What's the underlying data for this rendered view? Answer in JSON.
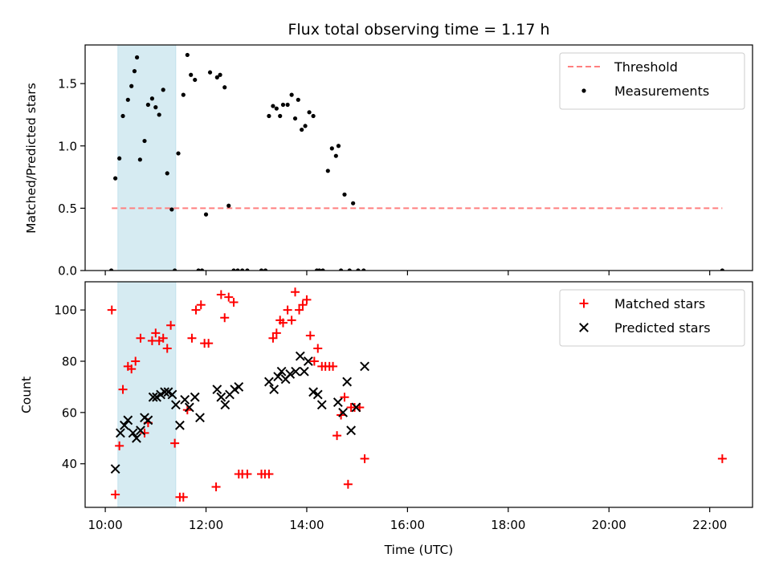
{
  "chart_data": [
    {
      "type": "scatter",
      "title": "Flux total observing time = 1.17 h",
      "xlabel": "",
      "ylabel": "Matched/Predicted stars",
      "xlim": [
        9.6,
        22.85
      ],
      "ylim": [
        0,
        1.81
      ],
      "yticks": [
        0.0,
        0.5,
        1.0,
        1.5
      ],
      "ytick_labels": [
        "0.0",
        "0.5",
        "1.0",
        "1.5"
      ],
      "xticks": [
        10,
        12,
        14,
        16,
        18,
        20,
        22
      ],
      "shaded_span": {
        "x": [
          10.25,
          11.4
        ],
        "color": "#add8e6"
      },
      "legend_position": "upper right",
      "series": [
        {
          "name": "Threshold",
          "style": "dashed-line",
          "color": "#ff7f7f",
          "x": [
            10.13,
            22.25
          ],
          "y": [
            0.5,
            0.5
          ]
        },
        {
          "name": "Measurements",
          "style": "dot",
          "color": "#000000",
          "x": [
            10.12,
            10.2,
            10.28,
            10.35,
            10.45,
            10.52,
            10.58,
            10.63,
            10.69,
            10.78,
            10.85,
            10.93,
            11.0,
            11.07,
            11.15,
            11.23,
            11.32,
            11.38,
            11.45,
            11.55,
            11.63,
            11.7,
            11.78,
            11.85,
            11.92,
            12.0,
            12.08,
            12.22,
            12.28,
            12.37,
            12.45,
            12.55,
            12.63,
            12.72,
            12.82,
            13.1,
            13.18,
            13.25,
            13.33,
            13.4,
            13.47,
            13.53,
            13.62,
            13.7,
            13.77,
            13.83,
            13.9,
            13.97,
            14.05,
            14.13,
            14.2,
            14.25,
            14.32,
            14.42,
            14.5,
            14.58,
            14.63,
            14.68,
            14.75,
            14.85,
            14.92,
            15.02,
            15.13,
            22.25
          ],
          "y": [
            0.0,
            0.74,
            0.9,
            1.24,
            1.37,
            1.48,
            1.6,
            1.71,
            0.89,
            1.04,
            1.33,
            1.38,
            1.31,
            1.25,
            1.45,
            0.78,
            0.49,
            0.0,
            0.94,
            1.41,
            1.73,
            1.57,
            1.53,
            0.0,
            0.0,
            0.45,
            1.59,
            1.55,
            1.57,
            1.47,
            0.52,
            0.0,
            0.0,
            0.0,
            0.0,
            0.0,
            0.0,
            1.24,
            1.32,
            1.3,
            1.24,
            1.33,
            1.33,
            1.41,
            1.22,
            1.37,
            1.13,
            1.16,
            1.27,
            1.24,
            0.0,
            0.0,
            0.0,
            0.8,
            0.98,
            0.92,
            1.0,
            0.0,
            0.61,
            0.0,
            0.54,
            0.0,
            0.0,
            0.0
          ]
        }
      ]
    },
    {
      "type": "scatter",
      "title": "",
      "xlabel": "Time (UTC)",
      "ylabel": "Count",
      "xlim": [
        9.6,
        22.85
      ],
      "ylim": [
        23,
        111
      ],
      "yticks": [
        40,
        60,
        80,
        100
      ],
      "ytick_labels": [
        "40",
        "60",
        "80",
        "100"
      ],
      "xticks": [
        10,
        12,
        14,
        16,
        18,
        20,
        22
      ],
      "xtick_labels": [
        "10:00",
        "12:00",
        "14:00",
        "16:00",
        "18:00",
        "20:00",
        "22:00"
      ],
      "shaded_span": {
        "x": [
          10.25,
          11.4
        ],
        "color": "#add8e6"
      },
      "legend_position": "upper right",
      "series": [
        {
          "name": "Matched stars",
          "marker": "plus",
          "color": "#ff0000",
          "x": [
            10.13,
            10.2,
            10.28,
            10.35,
            10.45,
            10.52,
            10.6,
            10.7,
            10.78,
            10.85,
            10.93,
            11.0,
            11.07,
            11.15,
            11.23,
            11.3,
            11.38,
            11.48,
            11.55,
            11.63,
            11.72,
            11.8,
            11.9,
            11.97,
            12.05,
            12.2,
            12.3,
            12.37,
            12.45,
            12.55,
            12.65,
            12.72,
            12.82,
            13.1,
            13.17,
            13.25,
            13.33,
            13.4,
            13.47,
            13.53,
            13.62,
            13.7,
            13.77,
            13.85,
            13.92,
            14.0,
            14.07,
            14.15,
            14.22,
            14.3,
            14.37,
            14.45,
            14.52,
            14.6,
            14.68,
            14.75,
            14.82,
            14.88,
            14.95,
            15.05,
            15.15,
            22.25
          ],
          "y": [
            100,
            28,
            47,
            69,
            78,
            77,
            80,
            89,
            52,
            56,
            88,
            91,
            88,
            89,
            85,
            94,
            48,
            27,
            27,
            61,
            89,
            100,
            102,
            87,
            87,
            31,
            106,
            97,
            105,
            103,
            36,
            36,
            36,
            36,
            36,
            36,
            89,
            91,
            96,
            95,
            100,
            96,
            107,
            100,
            102,
            104,
            90,
            80,
            85,
            78,
            78,
            78,
            78,
            51,
            59,
            66,
            32,
            62,
            62,
            62,
            42,
            42
          ]
        },
        {
          "name": "Predicted stars",
          "marker": "x",
          "color": "#000000",
          "x": [
            10.2,
            10.3,
            10.38,
            10.45,
            10.55,
            10.62,
            10.7,
            10.78,
            10.85,
            10.95,
            11.02,
            11.1,
            11.18,
            11.25,
            11.33,
            11.4,
            11.48,
            11.58,
            11.67,
            11.78,
            11.88,
            12.22,
            12.3,
            12.38,
            12.47,
            12.57,
            12.65,
            13.25,
            13.35,
            13.43,
            13.5,
            13.58,
            13.67,
            13.78,
            13.87,
            13.95,
            14.03,
            14.13,
            14.22,
            14.3,
            14.62,
            14.72,
            14.8,
            14.88,
            14.98,
            15.15
          ],
          "y": [
            38,
            52,
            55,
            57,
            52,
            50,
            53,
            58,
            57,
            66,
            66,
            67,
            68,
            68,
            67,
            63,
            55,
            65,
            62,
            66,
            58,
            69,
            66,
            63,
            67,
            69,
            70,
            72,
            69,
            74,
            76,
            73,
            75,
            76,
            82,
            76,
            80,
            68,
            67,
            63,
            64,
            60,
            72,
            53,
            62,
            78
          ]
        }
      ]
    }
  ]
}
